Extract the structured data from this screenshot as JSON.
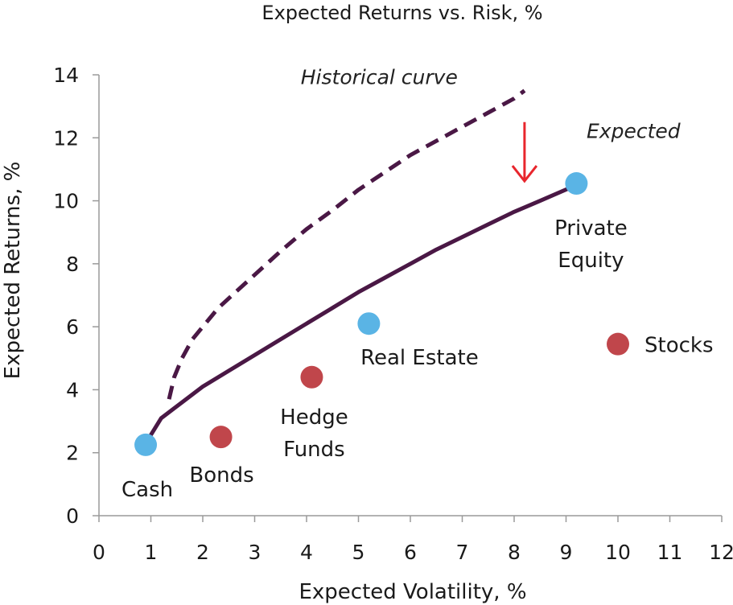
{
  "chart_data": {
    "type": "scatter",
    "title": "Expected Returns vs. Risk, %",
    "xlabel": "Expected Volatility, %",
    "ylabel": "Expected Returns, %",
    "xlim": [
      0,
      12
    ],
    "ylim": [
      0,
      14
    ],
    "x_ticks": [
      "0",
      "1",
      "2",
      "3",
      "4",
      "5",
      "6",
      "7",
      "8",
      "9",
      "10",
      "11",
      "12"
    ],
    "y_ticks": [
      "0",
      "2",
      "4",
      "6",
      "8",
      "10",
      "12",
      "14"
    ],
    "grid": false,
    "points": [
      {
        "label": [
          "Cash"
        ],
        "x": 0.9,
        "y": 2.25,
        "color": "#5ab4e5"
      },
      {
        "label": [
          "Bonds"
        ],
        "x": 2.35,
        "y": 2.5,
        "color": "#c0464b"
      },
      {
        "label": [
          "Hedge",
          "Funds"
        ],
        "x": 4.1,
        "y": 4.4,
        "color": "#c0464b"
      },
      {
        "label": [
          "Real Estate"
        ],
        "x": 5.2,
        "y": 6.1,
        "color": "#5ab4e5"
      },
      {
        "label": [
          "Private",
          "Equity"
        ],
        "x": 9.2,
        "y": 10.55,
        "color": "#5ab4e5"
      },
      {
        "label": [
          "Stocks"
        ],
        "x": 10.0,
        "y": 5.45,
        "color": "#c0464b"
      }
    ],
    "curves": [
      {
        "style": "solid",
        "color": "#4a1845",
        "x": [
          0.9,
          1.2,
          1.6,
          2.0,
          2.5,
          3.0,
          3.5,
          4.0,
          4.5,
          5.0,
          5.5,
          6.0,
          6.5,
          7.0,
          7.5,
          8.0,
          8.5,
          9.2
        ],
        "y": [
          2.3,
          3.1,
          3.6,
          4.1,
          4.6,
          5.1,
          5.6,
          6.1,
          6.6,
          7.1,
          7.55,
          8.0,
          8.45,
          8.85,
          9.25,
          9.65,
          10.0,
          10.5
        ]
      },
      {
        "name": "Historical curve",
        "style": "dashed",
        "color": "#4a1845",
        "x": [
          1.35,
          1.45,
          1.6,
          1.8,
          2.0,
          2.3,
          2.7,
          3.1,
          3.5,
          4.0,
          4.5,
          5.0,
          5.5,
          6.0,
          6.5,
          7.0,
          7.5,
          8.0,
          8.2
        ],
        "y": [
          3.7,
          4.4,
          5.0,
          5.6,
          6.0,
          6.6,
          7.2,
          7.8,
          8.4,
          9.1,
          9.7,
          10.35,
          10.9,
          11.45,
          11.9,
          12.35,
          12.8,
          13.25,
          13.5
        ]
      }
    ],
    "annotations": [
      {
        "text": "Historical curve",
        "x": 5.4,
        "y": 13.7,
        "italic": true
      },
      {
        "text": "Expected",
        "x": 10.3,
        "y": 12.0,
        "italic": true
      }
    ],
    "arrow": {
      "x": 8.2,
      "y_from": 12.5,
      "y_to": 10.55,
      "color": "#e8262d"
    }
  }
}
